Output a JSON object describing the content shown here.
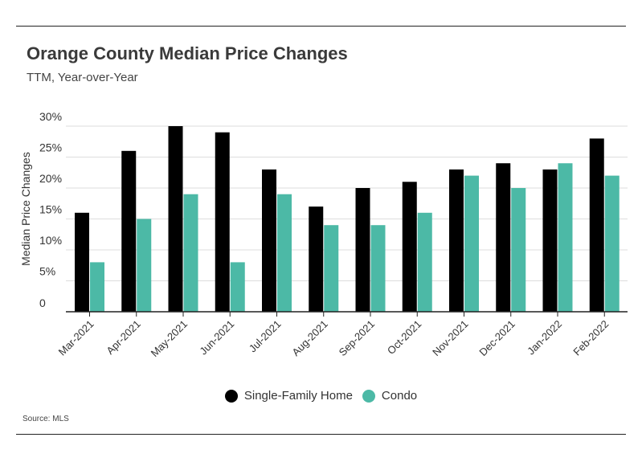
{
  "header": {
    "title": "Orange County Median Price Changes",
    "subtitle": "TTM, Year-over-Year"
  },
  "footer": {
    "source": "Source:  MLS"
  },
  "colors": {
    "sfh": "#000000",
    "condo": "#4cb9a6",
    "grid": "#dddddd",
    "axis": "#222222"
  },
  "chart_data": {
    "type": "bar",
    "title": "Orange County Median Price Changes",
    "subtitle": "TTM, Year-over-Year",
    "xlabel": "",
    "ylabel": "Median Price Changes",
    "ylim": [
      0,
      30
    ],
    "yticks": [
      0,
      5,
      10,
      15,
      20,
      25,
      30
    ],
    "ytick_labels": [
      "0",
      "5%",
      "10%",
      "15%",
      "20%",
      "25%",
      "30%"
    ],
    "grid": true,
    "legend_position": "bottom",
    "categories": [
      "Mar-2021",
      "Apr-2021",
      "May-2021",
      "Jun-2021",
      "Jul-2021",
      "Aug-2021",
      "Sep-2021",
      "Oct-2021",
      "Nov-2021",
      "Dec-2021",
      "Jan-2022",
      "Feb-2022"
    ],
    "series": [
      {
        "name": "Single-Family Home",
        "values": [
          16,
          26,
          30,
          29,
          23,
          17,
          20,
          21,
          23,
          24,
          23,
          28
        ]
      },
      {
        "name": "Condo",
        "values": [
          8,
          15,
          19,
          8,
          19,
          14,
          14,
          16,
          22,
          20,
          24,
          22
        ]
      }
    ]
  }
}
